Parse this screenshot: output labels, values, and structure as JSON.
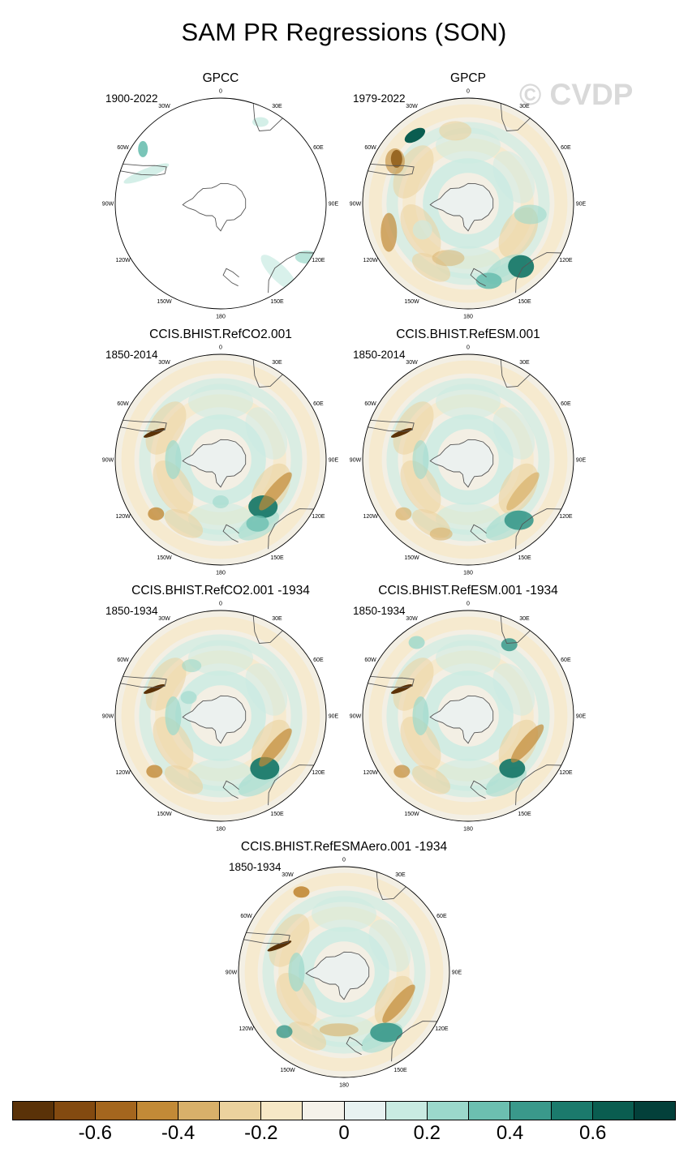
{
  "title": "SAM PR Regressions (SON)",
  "watermark": "© CVDP",
  "lon_labels": [
    "0",
    "30E",
    "60E",
    "90E",
    "120E",
    "150E",
    "180",
    "150W",
    "120W",
    "90W",
    "60W",
    "30W"
  ],
  "panels": [
    {
      "title": "GPCC",
      "period": "1900-2022",
      "coverage": "partial"
    },
    {
      "title": "GPCP",
      "period": "1979-2022",
      "coverage": "full"
    },
    {
      "title": "CCIS.BHIST.RefCO2.001",
      "period": "1850-2014",
      "coverage": "full"
    },
    {
      "title": "CCIS.BHIST.RefESM.001",
      "period": "1850-2014",
      "coverage": "full"
    },
    {
      "title": "CCIS.BHIST.RefCO2.001 -1934",
      "period": "1850-1934",
      "coverage": "full"
    },
    {
      "title": "CCIS.BHIST.RefESM.001 -1934",
      "period": "1850-1934",
      "coverage": "full"
    },
    {
      "title": "CCIS.BHIST.RefESMAero.001 -1934",
      "period": "1850-1934",
      "coverage": "full"
    }
  ],
  "colorbar": {
    "colors": [
      "#5a3208",
      "#834a10",
      "#a4661e",
      "#c28a37",
      "#d8b06a",
      "#ebd29e",
      "#f6e8c6",
      "#f5f2ea",
      "#e8f2f1",
      "#c9ebe2",
      "#9bd8cb",
      "#6cbfb0",
      "#3a998b",
      "#1b7a6c",
      "#0a5d50",
      "#03403a"
    ],
    "labels": [
      "-0.6",
      "-0.4",
      "-0.2",
      "0",
      "0.2",
      "0.4",
      "0.6"
    ],
    "label_values": [
      -0.6,
      -0.4,
      -0.2,
      0,
      0.2,
      0.4,
      0.6
    ],
    "range": [
      -0.8,
      0.8
    ]
  }
}
